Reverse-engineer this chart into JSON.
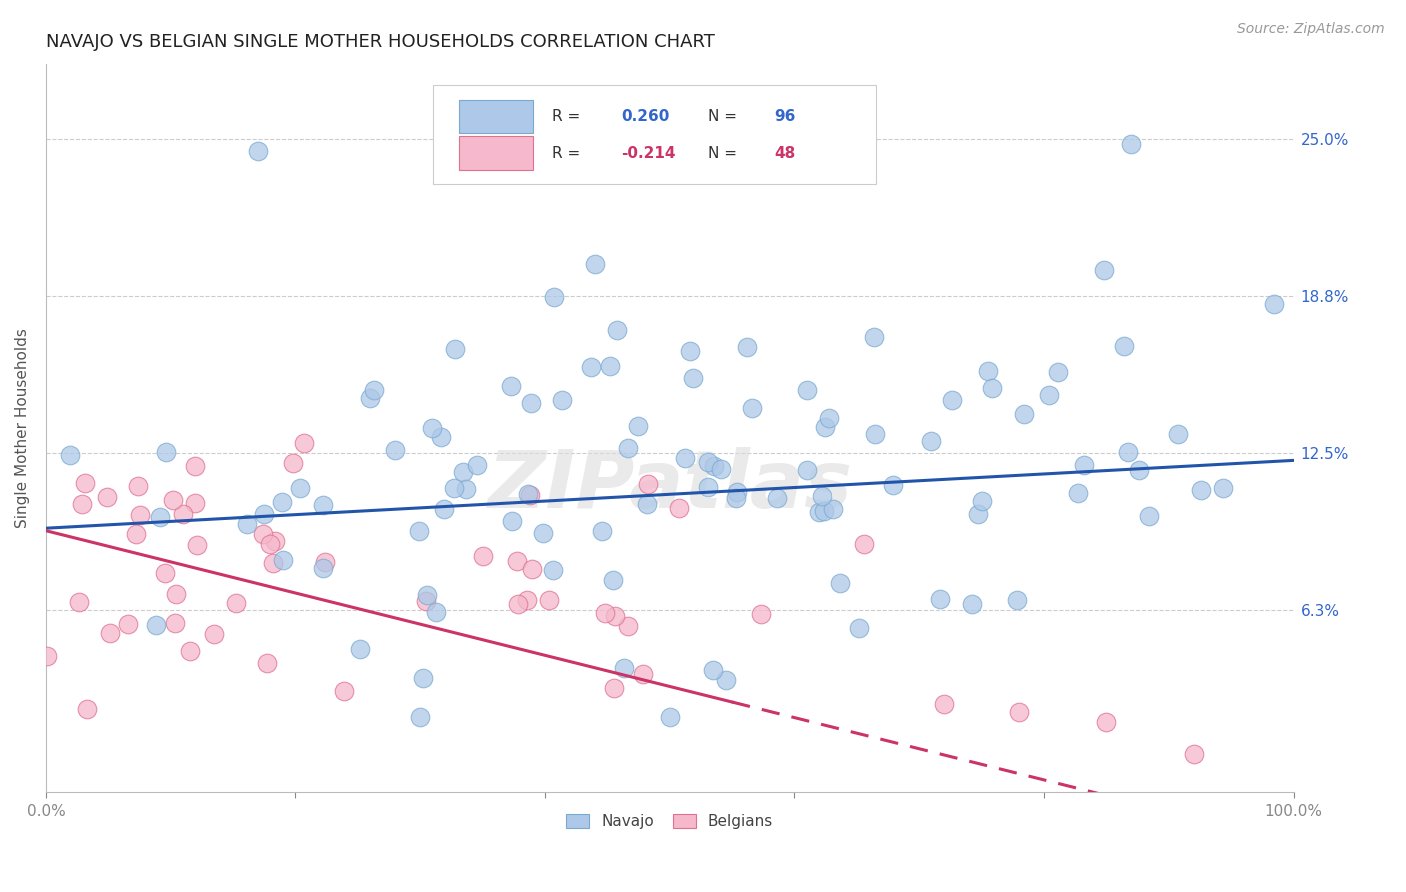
{
  "title": "NAVAJO VS BELGIAN SINGLE MOTHER HOUSEHOLDS CORRELATION CHART",
  "source": "Source: ZipAtlas.com",
  "ylabel": "Single Mother Households",
  "xlim": [
    0.0,
    1.0
  ],
  "ylim": [
    -0.01,
    0.28
  ],
  "navajo_R": 0.26,
  "navajo_N": 96,
  "belgian_R": -0.214,
  "belgian_N": 48,
  "navajo_color": "#adc8e8",
  "navajo_edge_color": "#7aaad0",
  "navajo_line_color": "#2255aa",
  "belgian_color": "#f5b8cc",
  "belgian_edge_color": "#e07090",
  "belgian_line_color": "#cc3366",
  "watermark_text": "ZIPatlas",
  "background_color": "#ffffff",
  "grid_color": "#cccccc",
  "title_fontsize": 13,
  "axis_label_fontsize": 11,
  "tick_fontsize": 11,
  "ytick_positions": [
    0.0625,
    0.125,
    0.1875,
    0.25
  ],
  "ytick_labels": [
    "6.3%",
    "12.5%",
    "18.8%",
    "25.0%"
  ]
}
